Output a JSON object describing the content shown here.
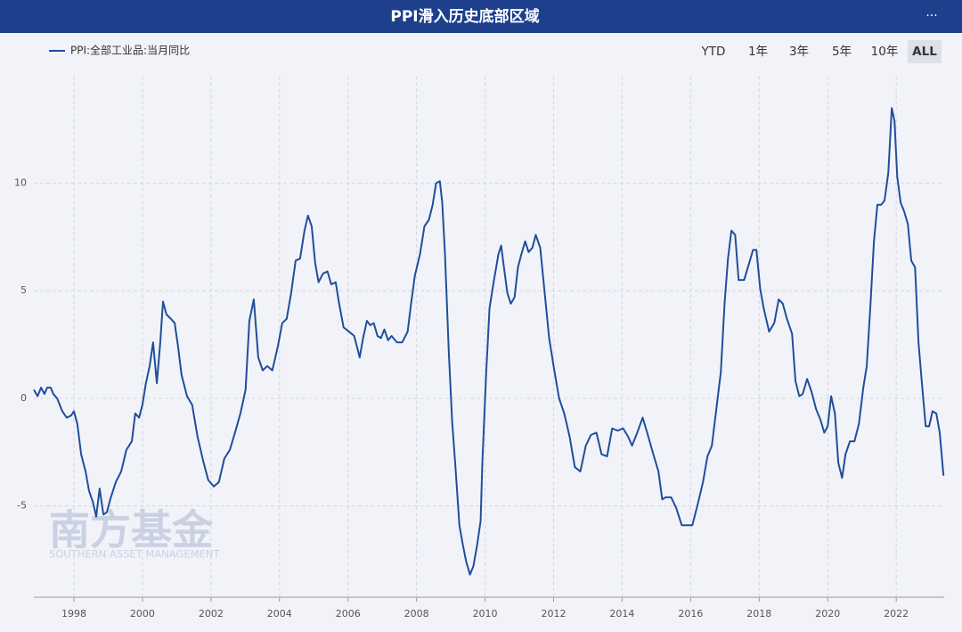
{
  "chart_data": {
    "type": "line",
    "title": "PPI滑入历史底部区域",
    "legend": "top-left",
    "grid": true,
    "xlim": [
      1996.83,
      2023.4
    ],
    "xticks": [
      1998,
      2000,
      2002,
      2004,
      2006,
      2008,
      2010,
      2012,
      2014,
      2016,
      2018,
      2020,
      2022
    ],
    "ylim": [
      -9.25,
      15
    ],
    "yticks": [
      -5,
      0,
      5,
      10
    ],
    "x": [
      1996.83,
      1996.94,
      1997.04,
      1997.14,
      1997.22,
      1997.32,
      1997.4,
      1997.51,
      1997.66,
      1997.79,
      1997.92,
      1998.0,
      1998.1,
      1998.21,
      1998.34,
      1998.44,
      1998.55,
      1998.65,
      1998.75,
      1998.86,
      1998.96,
      1999.06,
      1999.22,
      1999.38,
      1999.53,
      1999.69,
      1999.79,
      1999.9,
      2000.0,
      2000.1,
      2000.21,
      2000.31,
      2000.42,
      2000.52,
      2000.6,
      2000.7,
      2000.83,
      2000.94,
      2001.04,
      2001.14,
      2001.3,
      2001.45,
      2001.61,
      2001.77,
      2001.92,
      2002.08,
      2002.23,
      2002.39,
      2002.55,
      2002.7,
      2002.86,
      2003.01,
      2003.12,
      2003.25,
      2003.38,
      2003.51,
      2003.64,
      2003.79,
      2003.95,
      2004.08,
      2004.21,
      2004.34,
      2004.47,
      2004.6,
      2004.73,
      2004.83,
      2004.94,
      2005.04,
      2005.14,
      2005.27,
      2005.4,
      2005.51,
      2005.64,
      2005.74,
      2005.87,
      2006.03,
      2006.18,
      2006.34,
      2006.44,
      2006.55,
      2006.65,
      2006.75,
      2006.86,
      2006.96,
      2007.06,
      2007.17,
      2007.27,
      2007.43,
      2007.58,
      2007.74,
      2007.84,
      2007.95,
      2008.1,
      2008.23,
      2008.36,
      2008.47,
      2008.57,
      2008.68,
      2008.75,
      2008.83,
      2008.94,
      2009.04,
      2009.14,
      2009.25,
      2009.35,
      2009.45,
      2009.56,
      2009.66,
      2009.77,
      2009.87,
      2009.92,
      2010.03,
      2010.13,
      2010.26,
      2010.39,
      2010.47,
      2010.55,
      2010.65,
      2010.75,
      2010.86,
      2010.96,
      2011.06,
      2011.17,
      2011.27,
      2011.38,
      2011.48,
      2011.61,
      2011.74,
      2011.87,
      2012.0,
      2012.16,
      2012.31,
      2012.47,
      2012.62,
      2012.78,
      2012.94,
      2013.09,
      2013.25,
      2013.4,
      2013.56,
      2013.71,
      2013.87,
      2014.03,
      2014.18,
      2014.29,
      2014.44,
      2014.6,
      2014.75,
      2014.91,
      2015.06,
      2015.17,
      2015.27,
      2015.43,
      2015.58,
      2015.74,
      2015.9,
      2016.05,
      2016.21,
      2016.36,
      2016.49,
      2016.62,
      2016.78,
      2016.88,
      2016.99,
      2017.09,
      2017.19,
      2017.3,
      2017.4,
      2017.56,
      2017.71,
      2017.82,
      2017.92,
      2018.03,
      2018.13,
      2018.29,
      2018.44,
      2018.57,
      2018.69,
      2018.81,
      2018.96,
      2019.06,
      2019.17,
      2019.27,
      2019.4,
      2019.53,
      2019.66,
      2019.79,
      2019.9,
      2020.0,
      2020.1,
      2020.21,
      2020.31,
      2020.42,
      2020.52,
      2020.65,
      2020.78,
      2020.91,
      2021.04,
      2021.14,
      2021.25,
      2021.35,
      2021.45,
      2021.56,
      2021.66,
      2021.77,
      2021.87,
      2021.95,
      2022.03,
      2022.13,
      2022.23,
      2022.34,
      2022.44,
      2022.55,
      2022.65,
      2022.75,
      2022.86,
      2022.96,
      2023.06,
      2023.17,
      2023.27,
      2023.38
    ],
    "series": [
      {
        "name": "PPI:全部工业品:当月同比",
        "color": "#1f4e9c",
        "values": [
          0.4,
          0.1,
          0.5,
          0.2,
          0.5,
          0.5,
          0.2,
          0.0,
          -0.6,
          -0.9,
          -0.8,
          -0.6,
          -1.2,
          -2.6,
          -3.4,
          -4.3,
          -4.8,
          -5.5,
          -4.2,
          -5.4,
          -5.3,
          -4.7,
          -3.9,
          -3.4,
          -2.4,
          -2.0,
          -0.7,
          -0.9,
          -0.3,
          0.7,
          1.5,
          2.6,
          0.7,
          2.6,
          4.5,
          3.9,
          3.7,
          3.5,
          2.4,
          1.1,
          0.1,
          -0.3,
          -1.8,
          -2.9,
          -3.8,
          -4.1,
          -3.9,
          -2.8,
          -2.4,
          -1.6,
          -0.7,
          0.4,
          3.6,
          4.6,
          1.9,
          1.3,
          1.5,
          1.3,
          2.4,
          3.5,
          3.7,
          4.9,
          6.4,
          6.5,
          7.8,
          8.5,
          8.0,
          6.3,
          5.4,
          5.8,
          5.9,
          5.3,
          5.4,
          4.4,
          3.3,
          3.1,
          2.9,
          1.9,
          2.8,
          3.6,
          3.4,
          3.5,
          2.9,
          2.8,
          3.2,
          2.7,
          2.9,
          2.6,
          2.6,
          3.1,
          4.4,
          5.7,
          6.7,
          8.0,
          8.3,
          9.0,
          10.0,
          10.1,
          9.1,
          6.7,
          2.2,
          -1.1,
          -3.3,
          -5.9,
          -6.8,
          -7.6,
          -8.2,
          -7.8,
          -6.8,
          -5.7,
          -3.0,
          1.1,
          4.2,
          5.5,
          6.7,
          7.1,
          6.1,
          4.9,
          4.4,
          4.7,
          6.1,
          6.7,
          7.3,
          6.8,
          7.0,
          7.6,
          7.0,
          4.9,
          2.8,
          1.5,
          0.0,
          -0.7,
          -1.8,
          -3.2,
          -3.4,
          -2.2,
          -1.7,
          -1.6,
          -2.6,
          -2.7,
          -1.4,
          -1.5,
          -1.4,
          -1.8,
          -2.2,
          -1.6,
          -0.9,
          -1.7,
          -2.6,
          -3.4,
          -4.7,
          -4.6,
          -4.6,
          -5.1,
          -5.9,
          -5.9,
          -5.9,
          -4.9,
          -3.9,
          -2.7,
          -2.2,
          -0.1,
          1.2,
          4.4,
          6.5,
          7.8,
          7.6,
          5.5,
          5.5,
          6.3,
          6.9,
          6.9,
          5.1,
          4.2,
          3.1,
          3.5,
          4.6,
          4.4,
          3.7,
          3.0,
          0.8,
          0.1,
          0.2,
          0.9,
          0.3,
          -0.5,
          -1.0,
          -1.6,
          -1.3,
          0.1,
          -0.7,
          -3.0,
          -3.7,
          -2.6,
          -2.0,
          -2.0,
          -1.2,
          0.5,
          1.5,
          4.4,
          7.3,
          9.0,
          9.0,
          9.2,
          10.5,
          13.5,
          12.9,
          10.3,
          9.1,
          8.7,
          8.1,
          6.4,
          6.1,
          2.6,
          0.7,
          -1.3,
          -1.3,
          -0.6,
          -0.7,
          -1.6,
          -3.6
        ]
      }
    ]
  },
  "toolbar": {
    "menu": "···",
    "buttons": [
      "YTD",
      "1年",
      "3年",
      "5年",
      "10年",
      "ALL"
    ],
    "active": 5
  },
  "watermark": {
    "name": "南方基金",
    "subtitle": "SOUTHERN ASSET MANAGEMENT"
  }
}
